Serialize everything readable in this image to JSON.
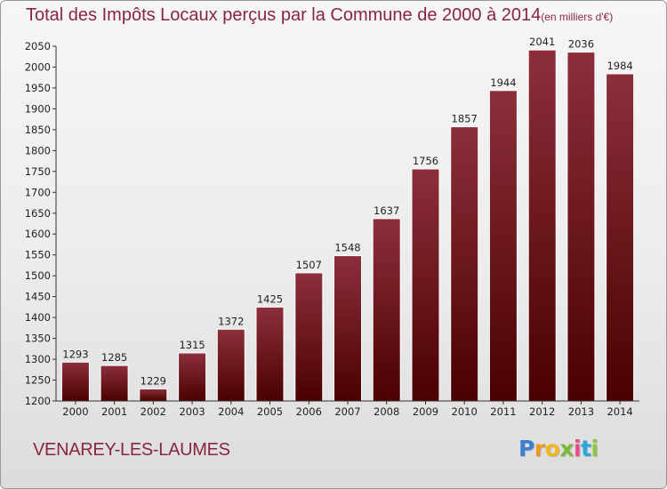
{
  "header": {
    "title": "Total des Impôts Locaux perçus par la Commune de 2000 à 2014",
    "unit": "(en milliers d'€)"
  },
  "footer": {
    "commune": "VENAREY-LES-LAUMES",
    "logo": {
      "text": "Proxiti",
      "letter_colors": [
        "#3a7fd0",
        "#e89a1c",
        "#f0b81e",
        "#7ab83a",
        "#e84a8a",
        "#2aa7d8",
        "#8cc63f"
      ]
    }
  },
  "chart_data": {
    "type": "bar",
    "title": "Total des Impôts Locaux perçus par la Commune de 2000 à 2014",
    "subtitle": "(en milliers d'€)",
    "xlabel": "",
    "ylabel": "",
    "categories": [
      "2000",
      "2001",
      "2002",
      "2003",
      "2004",
      "2005",
      "2006",
      "2007",
      "2008",
      "2009",
      "2010",
      "2011",
      "2012",
      "2013",
      "2014"
    ],
    "values": [
      1293,
      1285,
      1229,
      1315,
      1372,
      1425,
      1507,
      1548,
      1637,
      1756,
      1857,
      1944,
      2041,
      2036,
      1984
    ],
    "value_labels": [
      "1293",
      "1285",
      "1229",
      "1315",
      "1372",
      "1425",
      "1507",
      "1548",
      "1637",
      "1756",
      "1857",
      "1944",
      "2041",
      "2036",
      "1984"
    ],
    "ylim": [
      1200,
      2050
    ],
    "yticks": [
      1200,
      1250,
      1300,
      1350,
      1400,
      1450,
      1500,
      1550,
      1600,
      1650,
      1700,
      1750,
      1800,
      1850,
      1900,
      1950,
      2000,
      2050
    ],
    "ytick_labels": [
      "1200",
      "1250",
      "1300",
      "1350",
      "1400",
      "1450",
      "1500",
      "1550",
      "1600",
      "1650",
      "1700",
      "1750",
      "1800",
      "1850",
      "1900",
      "1950",
      "2000",
      "2050"
    ],
    "grid": false,
    "legend": "none",
    "colors": {
      "bar_top": "#8c2f3b",
      "bar_bottom": "#4a0000",
      "bar_stroke": "#ffffff",
      "axis": "#333333"
    }
  }
}
